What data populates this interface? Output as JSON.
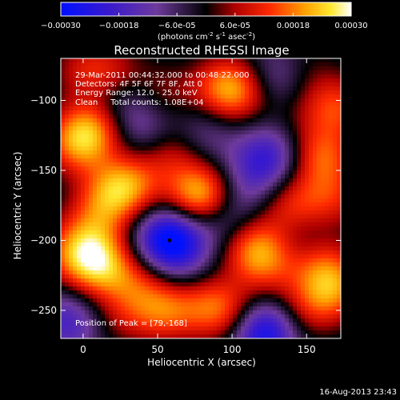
{
  "chart_data": {
    "type": "heatmap",
    "title": "Reconstructed RHESSI Image",
    "xlabel": "Heliocentric X (arcsec)",
    "ylabel": "Heliocentric Y (arcsec)",
    "xlim": [
      -15,
      173
    ],
    "ylim": [
      -270,
      -70
    ],
    "xticks": [
      0,
      50,
      100,
      150
    ],
    "yticks": [
      -100,
      -150,
      -200,
      -250
    ],
    "colorbar": {
      "min": -0.0003,
      "max": 0.0003,
      "tick_values": [
        -0.0003,
        -0.00018,
        -6e-05,
        6e-05,
        0.00018,
        0.0003
      ],
      "tick_labels": [
        "-0.00030",
        "-0.00018",
        "-6.0e-05",
        "6.0e-05",
        "0.00018",
        "0.00030"
      ],
      "unit_label": "(photons cm",
      "unit_sup1": "-2",
      "unit_mid": " s",
      "unit_sup2": "-1",
      "unit_end": " asec",
      "unit_sup3": "-2",
      "unit_close": ")"
    },
    "info_lines": [
      "29-Mar-2011 00:44:32.000 to 00:48:22.000",
      "Detectors: 4F 5F 6F 7F 8F, Att 0",
      "Energy Range: 12.0 - 25.0 keV",
      "Clean     Total counts: 1.08E+04"
    ],
    "peak_label": "Position of Peak = [79,-168]",
    "peak": [
      79,
      -168
    ],
    "grid": false,
    "sources": [
      {
        "x": 79,
        "y": -168,
        "value": 0.00028
      },
      {
        "x": 58,
        "y": -200,
        "value": -0.0003
      },
      {
        "x": 120,
        "y": -265,
        "value": -0.00026
      },
      {
        "x": 0,
        "y": -78,
        "value": 0.0001
      },
      {
        "x": 20,
        "y": -82,
        "value": 0.00012
      },
      {
        "x": -3,
        "y": -130,
        "value": 0.00022
      },
      {
        "x": 10,
        "y": -115,
        "value": 0.00016
      },
      {
        "x": 30,
        "y": -160,
        "value": 0.0002
      },
      {
        "x": 15,
        "y": -172,
        "value": 0.00014
      },
      {
        "x": 60,
        "y": -137,
        "value": 0.00012
      },
      {
        "x": 95,
        "y": -90,
        "value": 0.00016
      },
      {
        "x": 105,
        "y": -95,
        "value": 0.00012
      },
      {
        "x": 80,
        "y": -125,
        "value": -8e-05
      },
      {
        "x": 130,
        "y": -85,
        "value": -0.0001
      },
      {
        "x": 150,
        "y": -80,
        "value": 6e-05
      },
      {
        "x": 170,
        "y": -105,
        "value": 0.00016
      },
      {
        "x": 160,
        "y": -140,
        "value": 0.00018
      },
      {
        "x": 125,
        "y": -140,
        "value": -0.00016
      },
      {
        "x": 110,
        "y": -160,
        "value": -8e-05
      },
      {
        "x": 140,
        "y": -175,
        "value": 0.00014
      },
      {
        "x": 168,
        "y": -170,
        "value": 0.00012
      },
      {
        "x": 115,
        "y": -205,
        "value": 0.0002
      },
      {
        "x": 125,
        "y": -220,
        "value": 0.0001
      },
      {
        "x": 160,
        "y": -215,
        "value": 0.00014
      },
      {
        "x": 168,
        "y": -235,
        "value": 0.00018
      },
      {
        "x": 150,
        "y": -250,
        "value": 0.0001
      },
      {
        "x": 10,
        "y": -218,
        "value": 0.00022
      },
      {
        "x": -8,
        "y": -210,
        "value": 0.00012
      },
      {
        "x": 35,
        "y": -230,
        "value": 0.00012
      },
      {
        "x": 55,
        "y": -250,
        "value": 0.00018
      },
      {
        "x": 85,
        "y": -245,
        "value": 0.00014
      },
      {
        "x": 100,
        "y": -255,
        "value": 0.00012
      },
      {
        "x": 25,
        "y": -255,
        "value": 8e-05
      },
      {
        "x": -10,
        "y": -258,
        "value": -0.00014
      },
      {
        "x": 20,
        "y": -100,
        "value": -0.00012
      },
      {
        "x": 40,
        "y": -120,
        "value": -0.0001
      },
      {
        "x": 55,
        "y": -95,
        "value": 8e-05
      },
      {
        "x": 95,
        "y": -185,
        "value": -0.0001
      },
      {
        "x": 150,
        "y": -200,
        "value": -6e-05
      },
      {
        "x": 140,
        "y": -110,
        "value": 4e-05
      },
      {
        "x": 70,
        "y": -225,
        "value": -4e-05
      },
      {
        "x": 5,
        "y": -195,
        "value": 0.00012
      }
    ]
  },
  "footer": {
    "timestamp": "16-Aug-2013 23:43"
  }
}
